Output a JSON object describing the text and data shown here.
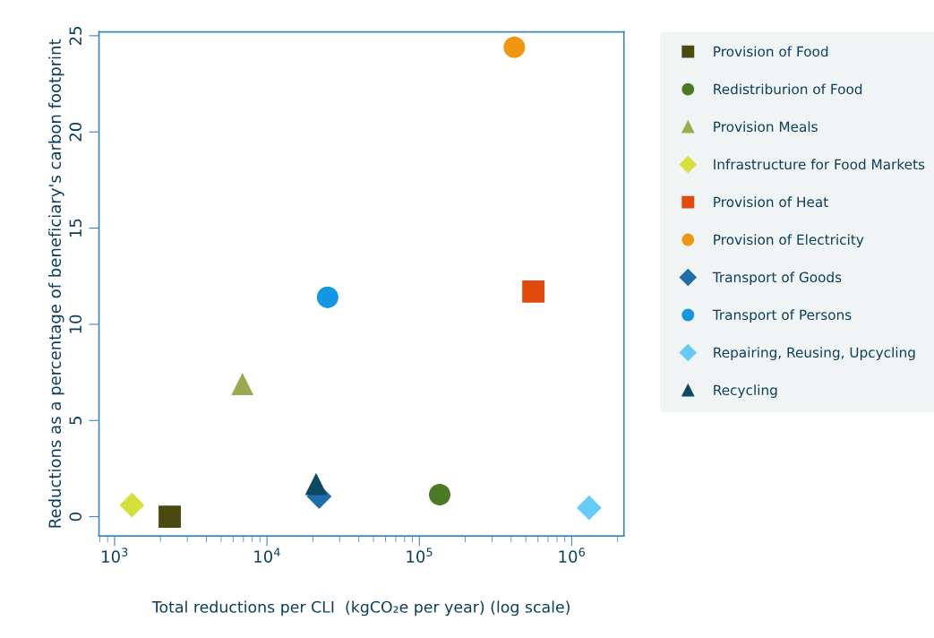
{
  "chart_data": {
    "type": "scatter",
    "xlabel": "Total reductions per CLI  (kgCO₂e per year) (log scale)",
    "ylabel": "Reductions as a percentage of beneficiary's carbon footprint",
    "log": "x",
    "xlim": [
      790,
      2200000
    ],
    "ylim": [
      -1,
      25.2
    ],
    "xticks": [
      {
        "value": 1000,
        "label": "10$^{3}$"
      },
      {
        "value": 10000,
        "label": "10$^{4}$"
      },
      {
        "value": 100000,
        "label": "10$^{5}$"
      },
      {
        "value": 1000000,
        "label": "10$^{6}$"
      }
    ],
    "yticks": [
      0,
      5,
      10,
      15,
      20,
      25
    ],
    "grid": false,
    "legend": "right",
    "series": [
      {
        "name": "Provision of Food",
        "color": "#4a4a0f",
        "marker": "square",
        "x": [
          2300
        ],
        "values": [
          0
        ]
      },
      {
        "name": "Redistriburion of Food",
        "color": "#4a7a23",
        "marker": "circle",
        "x": [
          136000
        ],
        "values": [
          1.15
        ]
      },
      {
        "name": "Provision Meals",
        "color": "#9ea84f",
        "marker": "triangle",
        "x": [
          6900
        ],
        "values": [
          6.9
        ]
      },
      {
        "name": "Infrastructure for Food Markets",
        "color": "#d6e03c",
        "marker": "diamond",
        "x": [
          1300
        ],
        "values": [
          0.6
        ]
      },
      {
        "name": "Provision of Heat",
        "color": "#e04a0a",
        "marker": "square",
        "x": [
          560000
        ],
        "values": [
          11.7
        ]
      },
      {
        "name": "Provision of Electricity",
        "color": "#f0960f",
        "marker": "circle",
        "x": [
          420000
        ],
        "values": [
          24.4
        ]
      },
      {
        "name": "Transport of Goods",
        "color": "#1f6ea8",
        "marker": "diamond",
        "x": [
          22000
        ],
        "values": [
          1.05
        ]
      },
      {
        "name": "Transport of Persons",
        "color": "#1297e0",
        "marker": "circle",
        "x": [
          25000
        ],
        "values": [
          11.4
        ]
      },
      {
        "name": "Repairing, Reusing, Upcycling",
        "color": "#66ccf5",
        "marker": "diamond",
        "x": [
          1300000
        ],
        "values": [
          0.46
        ]
      },
      {
        "name": "Recycling",
        "color": "#0a4a63",
        "marker": "triangle",
        "x": [
          21000
        ],
        "values": [
          1.7
        ]
      }
    ]
  }
}
